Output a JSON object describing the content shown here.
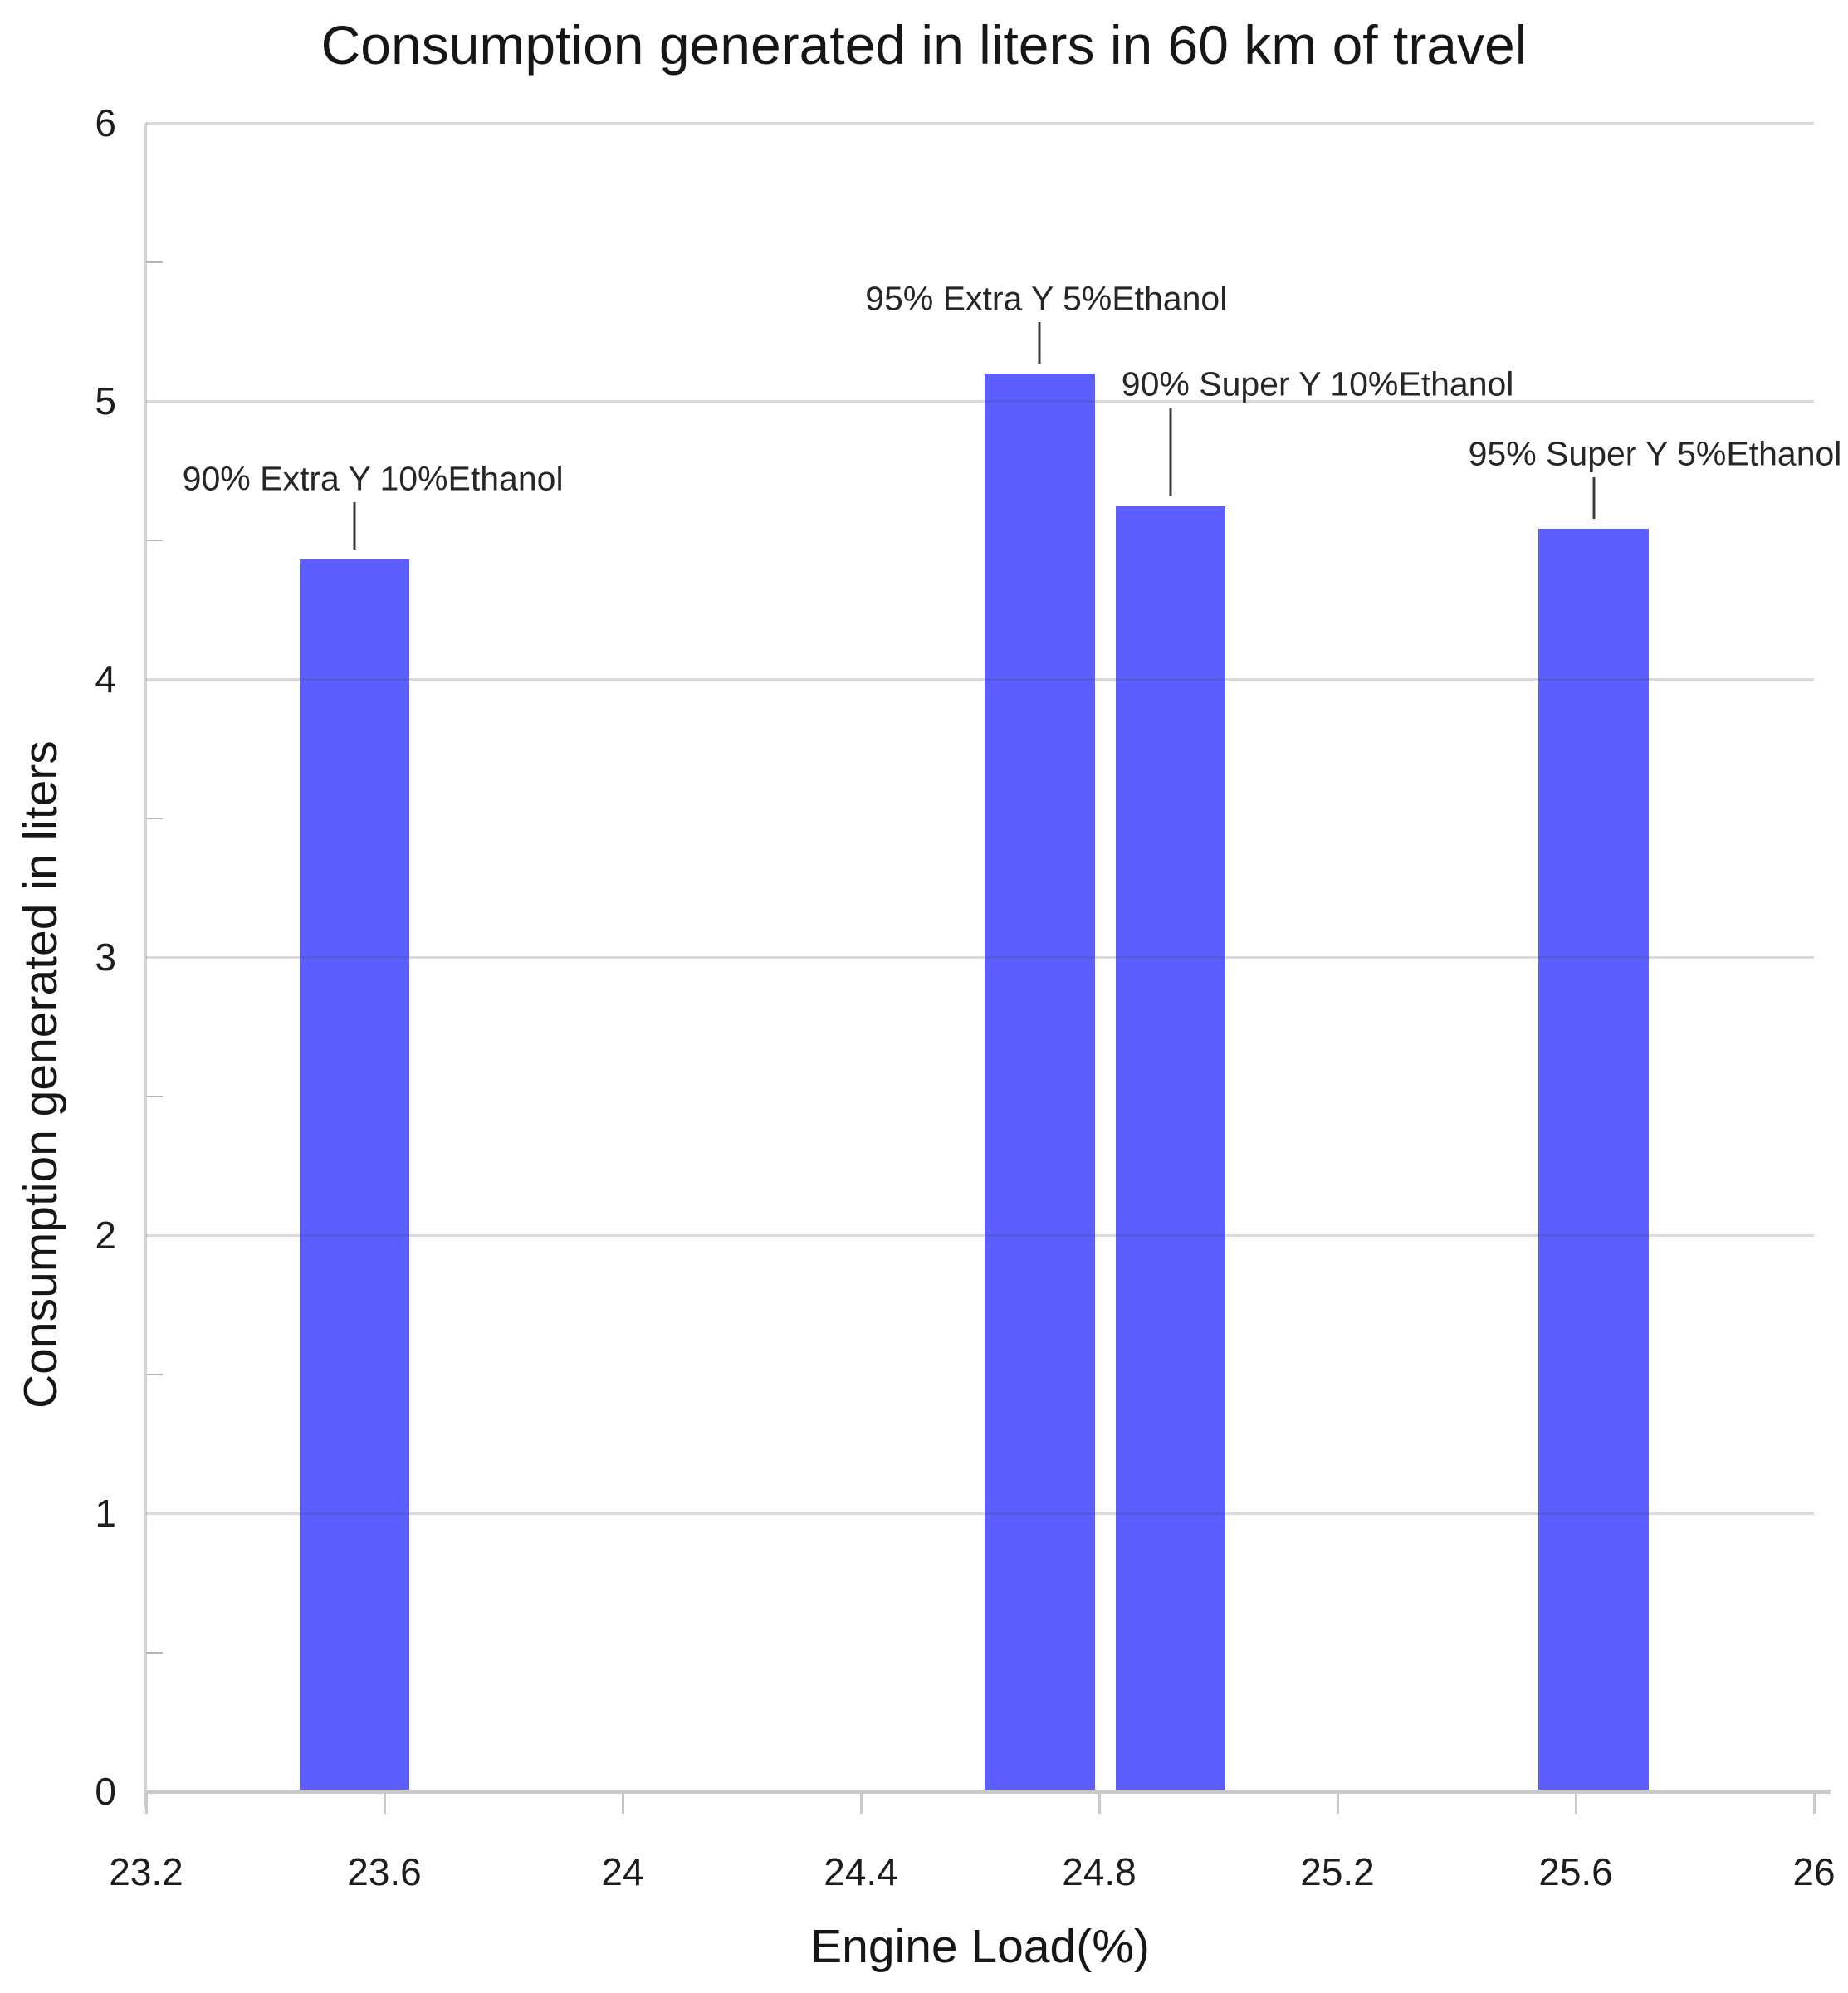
{
  "chart_data": {
    "type": "bar",
    "title": "Consumption generated in liters in 60 km of travel",
    "xlabel": "Engine Load(%)",
    "ylabel": "Consumption generated in liters",
    "xlim": [
      23.2,
      26
    ],
    "ylim": [
      0,
      6
    ],
    "x_ticks": [
      23.2,
      23.6,
      24,
      24.4,
      24.8,
      25.2,
      25.6,
      26
    ],
    "y_ticks": [
      0,
      1,
      2,
      3,
      4,
      5,
      6
    ],
    "y_minor_ticks": [
      0.5,
      1.5,
      2.5,
      3.5,
      4.5,
      5.5
    ],
    "grid": "horizontal",
    "legend": "none",
    "bar_color": "#5c5ffd",
    "bar_width_x": 0.185,
    "points": [
      {
        "label": "90% Extra Y 10%Ethanol",
        "x": 23.55,
        "y": 4.43
      },
      {
        "label": "95% Extra Y 5%Ethanol",
        "x": 24.7,
        "y": 5.1
      },
      {
        "label": "90% Super Y 10%Ethanol",
        "x": 24.92,
        "y": 4.62
      },
      {
        "label": "95% Super Y 5%Ethanol",
        "x": 25.63,
        "y": 4.54
      }
    ],
    "annotation_layout": [
      {
        "dx": 22,
        "text_center_above_top": 97
      },
      {
        "dx": 8,
        "text_center_above_top": 90
      },
      {
        "dx": 177,
        "text_center_above_top": 147
      },
      {
        "dx": 74,
        "text_center_above_top": 90
      }
    ]
  }
}
